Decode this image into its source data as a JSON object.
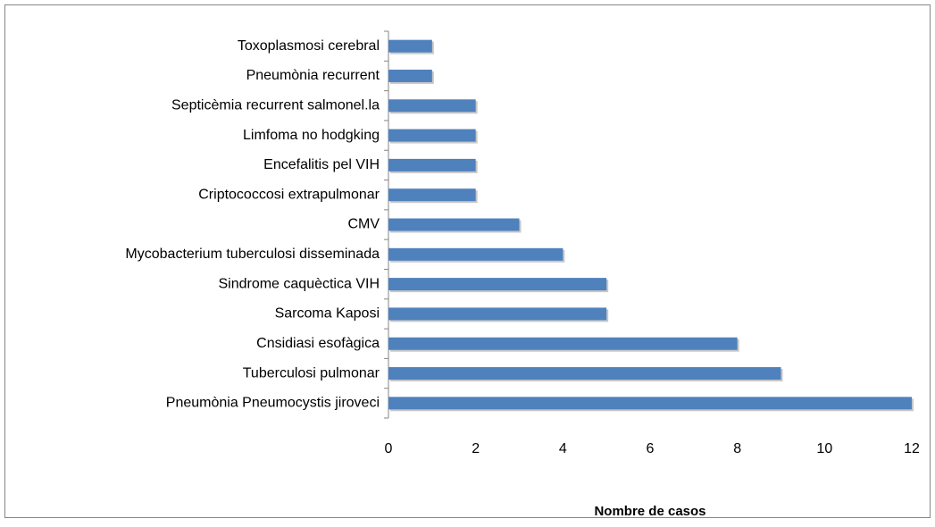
{
  "chart_data": {
    "type": "barh",
    "categories": [
      "Toxoplasmosi cerebral",
      "Pneumònia recurrent",
      "Septicèmia recurrent salmonel.la",
      "Limfoma no hodgking",
      "Encefalitis pel VIH",
      "Criptococcosi extrapulmonar",
      "CMV",
      "Mycobacterium tuberculosi disseminada",
      "Sindrome caquèctica VIH",
      "Sarcoma Kaposi",
      "Cnsidiasi esofàgica",
      "Tuberculosi pulmonar",
      "Pneumònia Pneumocystis jiroveci"
    ],
    "values": [
      1,
      1,
      2,
      2,
      2,
      2,
      3,
      4,
      5,
      5,
      8,
      9,
      12
    ],
    "color": "#4f81bd",
    "xlim": [
      0,
      12
    ],
    "xticks": [
      0,
      2,
      4,
      6,
      8,
      10,
      12
    ],
    "x_label": "Nombre de casos"
  }
}
